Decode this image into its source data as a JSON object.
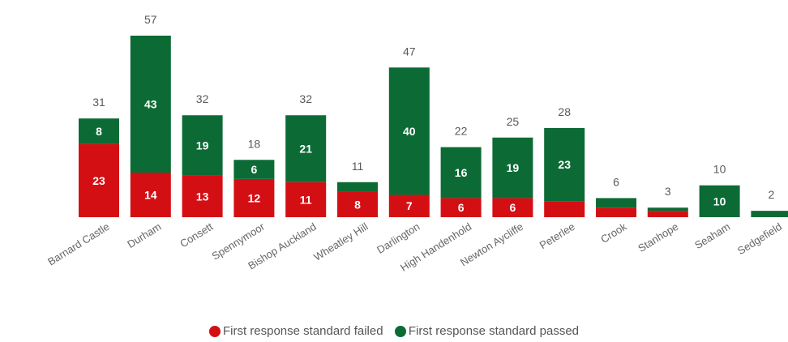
{
  "chart_data": {
    "type": "bar",
    "stacked": true,
    "categories": [
      "Barnard Castle",
      "Durham",
      "Consett",
      "Spennymoor",
      "Bishop Auckland",
      "Wheatley Hill",
      "Darlington",
      "High Handenhold",
      "Newton Aycliffe",
      "Peterlee",
      "Crook",
      "Stanhope",
      "Seaham",
      "Sedgefield"
    ],
    "series": [
      {
        "name": "First response standard failed",
        "color": "#d40f14",
        "values": [
          23,
          14,
          13,
          12,
          11,
          8,
          7,
          6,
          6,
          5,
          3,
          2,
          0,
          0
        ],
        "labels": [
          "23",
          "14",
          "13",
          "12",
          "11",
          "8",
          "7",
          "6",
          "6",
          "",
          "",
          "",
          "",
          ""
        ]
      },
      {
        "name": "First response standard passed",
        "color": "#0c6b35",
        "values": [
          8,
          43,
          19,
          6,
          21,
          3,
          40,
          16,
          19,
          23,
          3,
          1,
          10,
          2
        ],
        "labels": [
          "8",
          "43",
          "19",
          "6",
          "21",
          "",
          "40",
          "16",
          "19",
          "23",
          "",
          "",
          "10",
          ""
        ]
      }
    ],
    "totals": [
      "31",
      "57",
      "32",
      "18",
      "32",
      "11",
      "47",
      "22",
      "25",
      "28",
      "6",
      "3",
      "10",
      "2"
    ],
    "ylim": [
      0,
      60
    ],
    "grid": false,
    "legend_position": "bottom"
  },
  "legend": {
    "failed": "First response standard failed",
    "passed": "First response standard passed",
    "failed_color": "#d40f14",
    "passed_color": "#0c6b35"
  }
}
